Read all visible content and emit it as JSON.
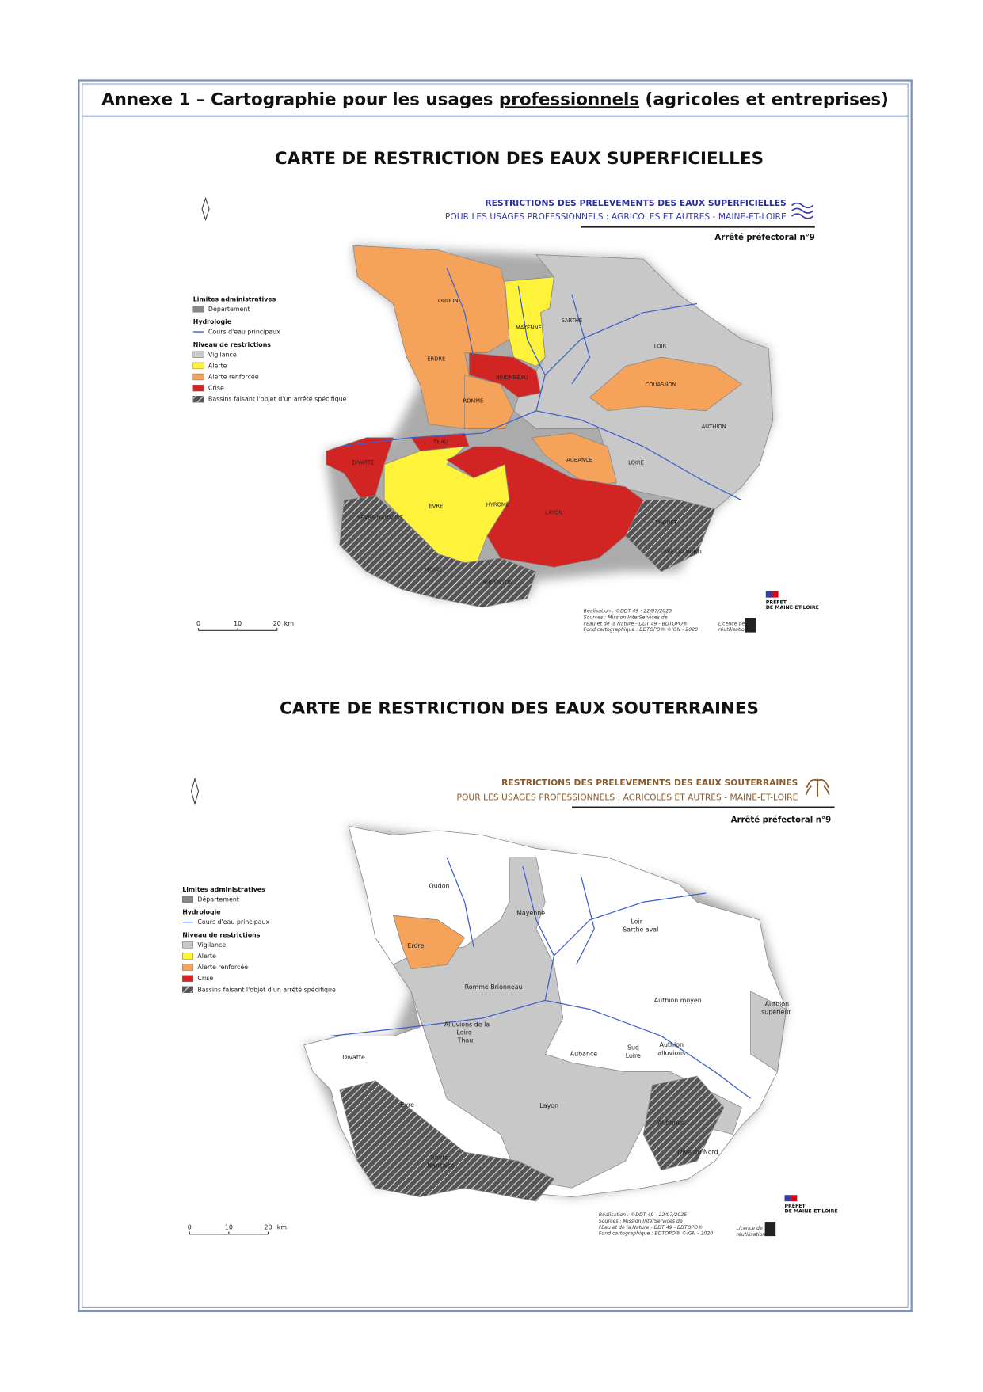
{
  "header": {
    "title_prefix": "Annexe 1 – Cartographie pour les usages ",
    "title_underlined": "professionnels",
    "title_suffix": " (agricoles et entreprises)"
  },
  "maps": [
    {
      "heading": "CARTE DE RESTRICTION DES EAUX SUPERFICIELLES",
      "title": "RESTRICTIONS DES PRELEVEMENTS DES EAUX SUPERFICIELLES",
      "subtitle": "POUR LES USAGES PROFESSIONNELS : AGRICOLES ET AUTRES - MAINE-ET-LOIRE",
      "decree": "Arrêté préfectoral n°9",
      "legend": [
        {
          "title": "Limites administratives",
          "items": [
            "Département"
          ]
        },
        {
          "title": "Hydrologie",
          "items": [
            "Cours d'eau principaux"
          ]
        },
        {
          "title": "Niveau de restrictions",
          "items": [
            "Vigilance",
            "Alerte",
            "Alerte renforcée",
            "Crise",
            "Bassins faisant l'objet d'un arrêté spécifique"
          ]
        }
      ],
      "basins": [
        "OUDON",
        "MAYENNE",
        "SARTHE",
        "LOIR",
        "ERDRE",
        "BRIONNEAU",
        "COUASNON",
        "ROMME",
        "AUTHION",
        "THAU",
        "DIVATTE",
        "AUBANCE",
        "LOIRE",
        "EVRE",
        "HYROME",
        "LAYON",
        "SEVRE NANTAISE",
        "MOINE",
        "ARGENTON",
        "THOUET",
        "DIVE DU NORD"
      ],
      "scale": [
        "0",
        "10",
        "20",
        "km"
      ],
      "credits": [
        "Réalisation : ©DDT 49 - 22/07/2025",
        "Sources : Mission InterServices de",
        "l'Eau et de la Nature - DDT 49 - BDTOPO®",
        "Fond cartographique : BDTOPO® ©IGN - 2020"
      ],
      "licence": [
        "Licence de",
        "réutilisation"
      ],
      "prefect": [
        "PRÉFET",
        "DE MAINE-ET-LOIRE"
      ]
    },
    {
      "heading": "CARTE DE RESTRICTION DES EAUX SOUTERRAINES",
      "title": "RESTRICTIONS DES PRELEVEMENTS DES EAUX SOUTERRAINES",
      "subtitle": "POUR LES USAGES PROFESSIONNELS : AGRICOLES ET AUTRES - MAINE-ET-LOIRE",
      "decree": "Arrêté préfectoral n°9",
      "legend": [
        {
          "title": "Limites administratives",
          "items": [
            "Département"
          ]
        },
        {
          "title": "Hydrologie",
          "items": [
            "Cours d'eau principaux"
          ]
        },
        {
          "title": "Niveau de restrictions",
          "items": [
            "Vigilance",
            "Alerte",
            "Alerte renforcée",
            "Crise",
            "Bassins faisant l'objet d'un arrêté spécifique"
          ]
        }
      ],
      "basins": [
        "Oudon",
        "Mayenne",
        "Loir",
        "Sarthe aval",
        "Erdre",
        "Romme Brionneau",
        "Authion moyen",
        "Authion",
        "supérieur",
        "Alluvions de la",
        "Loire",
        "Thau",
        "Divatte",
        "Aubance",
        "Sud",
        "Loire",
        "Authion",
        "alluvions",
        "Evre",
        "Layon",
        "Aubance",
        "Dive du Nord",
        "Sèvre",
        "Nantaise"
      ],
      "scale": [
        "0",
        "10",
        "20",
        "km"
      ],
      "credits": [
        "Réalisation : ©DDT 49 - 22/07/2025",
        "Sources : Mission InterServices de",
        "l'Eau et de la Nature - DDT 49 - BDTOPO®",
        "Fond cartographique : BDTOPO® ©IGN - 2020"
      ],
      "licence": [
        "Licence de",
        "réutilisation"
      ],
      "prefect": [
        "PRÉFET",
        "DE MAINE-ET-LOIRE"
      ]
    }
  ]
}
